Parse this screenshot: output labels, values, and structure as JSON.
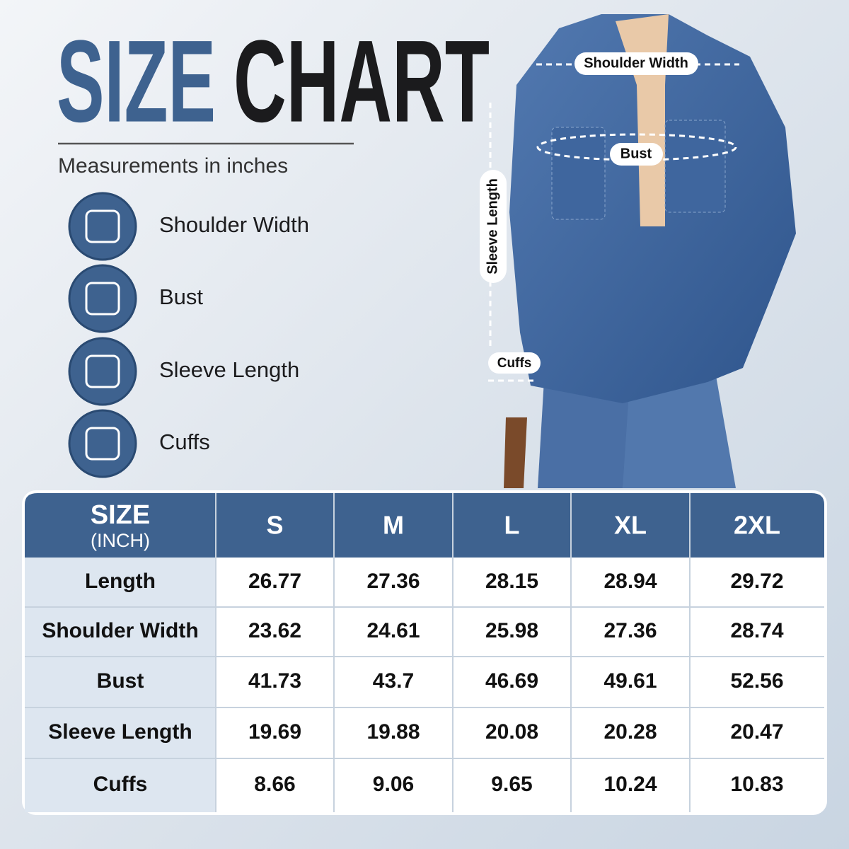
{
  "header": {
    "title_part1": "SIZE",
    "title_part2": "CHART",
    "subtitle": "Measurements in inches"
  },
  "legend": [
    {
      "label": "Shoulder Width"
    },
    {
      "label": "Bust"
    },
    {
      "label": "Sleeve Length"
    },
    {
      "label": "Cuffs"
    }
  ],
  "photo_callouts": {
    "shoulder": "Shoulder Width",
    "bust": "Bust",
    "sleeve": "Sleeve Length",
    "cuffs": "Cuffs"
  },
  "table": {
    "corner": {
      "title": "SIZE",
      "unit": "(INCH)"
    },
    "columns": [
      "S",
      "M",
      "L",
      "XL",
      "2XL"
    ],
    "rows": [
      {
        "label": "Length",
        "values": [
          26.77,
          27.36,
          28.15,
          28.94,
          29.72
        ]
      },
      {
        "label": "Shoulder Width",
        "values": [
          23.62,
          24.61,
          25.98,
          27.36,
          28.74
        ]
      },
      {
        "label": "Bust",
        "values": [
          41.73,
          43.7,
          46.69,
          49.61,
          52.56
        ]
      },
      {
        "label": "Sleeve Length",
        "values": [
          19.69,
          19.88,
          20.08,
          20.28,
          20.47
        ]
      },
      {
        "label": "Cuffs",
        "values": [
          8.66,
          9.06,
          9.65,
          10.24,
          10.83
        ]
      }
    ]
  }
}
